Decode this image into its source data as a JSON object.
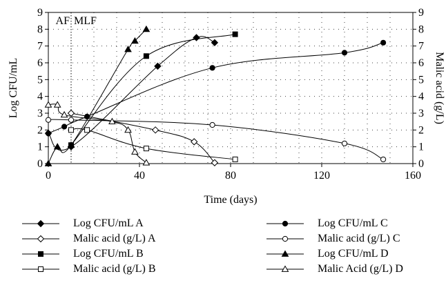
{
  "chart_data": {
    "type": "line",
    "xlabel": "Time (days)",
    "ylabel": "Log CFU/mL",
    "y2label": "Malic acid (g/L)",
    "xlim": [
      0,
      160
    ],
    "ylim": [
      0,
      9
    ],
    "y2lim": [
      0,
      9
    ],
    "xticks": [
      "0",
      "40",
      "80",
      "120",
      "160"
    ],
    "yticks": [
      "0",
      "1",
      "2",
      "3",
      "4",
      "5",
      "6",
      "7",
      "8",
      "9"
    ],
    "y2ticks": [
      "0",
      "1",
      "2",
      "3",
      "4",
      "5",
      "6",
      "7",
      "8",
      "9"
    ],
    "grid": "dotted",
    "annotations": {
      "af_label": "AF",
      "mlf_label": "MLF",
      "divider_x": 10
    },
    "legend_position": "bottom",
    "series": [
      {
        "name": "Log CFU/mL A",
        "marker": "diamond-filled",
        "axis": "left",
        "x": [
          0,
          10,
          48,
          65,
          73
        ],
        "y": [
          1.8,
          1.0,
          5.8,
          7.5,
          7.2
        ]
      },
      {
        "name": "Malic acid (g/L) A",
        "marker": "diamond-open",
        "axis": "right",
        "x": [
          10,
          47,
          64,
          73
        ],
        "y": [
          3.0,
          2.0,
          1.3,
          0.05
        ]
      },
      {
        "name": "Log CFU/mL B",
        "marker": "square-filled",
        "axis": "left",
        "x": [
          10,
          43,
          82
        ],
        "y": [
          1.1,
          6.4,
          7.7
        ]
      },
      {
        "name": "Malic acid (g/L) B",
        "marker": "square-open",
        "axis": "right",
        "x": [
          10,
          17,
          43,
          82
        ],
        "y": [
          2.0,
          2.0,
          0.9,
          0.25
        ]
      },
      {
        "name": "Log CFU/mL C",
        "marker": "circle-filled",
        "axis": "left",
        "x": [
          0,
          7,
          17,
          72,
          130,
          147
        ],
        "y": [
          1.8,
          2.2,
          2.8,
          5.7,
          6.6,
          7.2
        ]
      },
      {
        "name": "Malic acid (g/L) C",
        "marker": "circle-open",
        "axis": "right",
        "x": [
          0,
          10,
          72,
          130,
          147
        ],
        "y": [
          2.6,
          2.6,
          2.3,
          1.2,
          0.25
        ]
      },
      {
        "name": "Log CFU/mL D",
        "marker": "triangle-filled",
        "axis": "left",
        "x": [
          0,
          4,
          10,
          35,
          38,
          43
        ],
        "y": [
          0.0,
          1.0,
          1.1,
          6.8,
          7.3,
          8.0
        ]
      },
      {
        "name": "Malic Acid (g/L) D",
        "marker": "triangle-open",
        "axis": "right",
        "x": [
          0,
          4,
          7,
          28,
          35,
          38,
          43
        ],
        "y": [
          3.5,
          3.5,
          2.9,
          2.5,
          2.0,
          0.7,
          0.05
        ]
      }
    ]
  }
}
